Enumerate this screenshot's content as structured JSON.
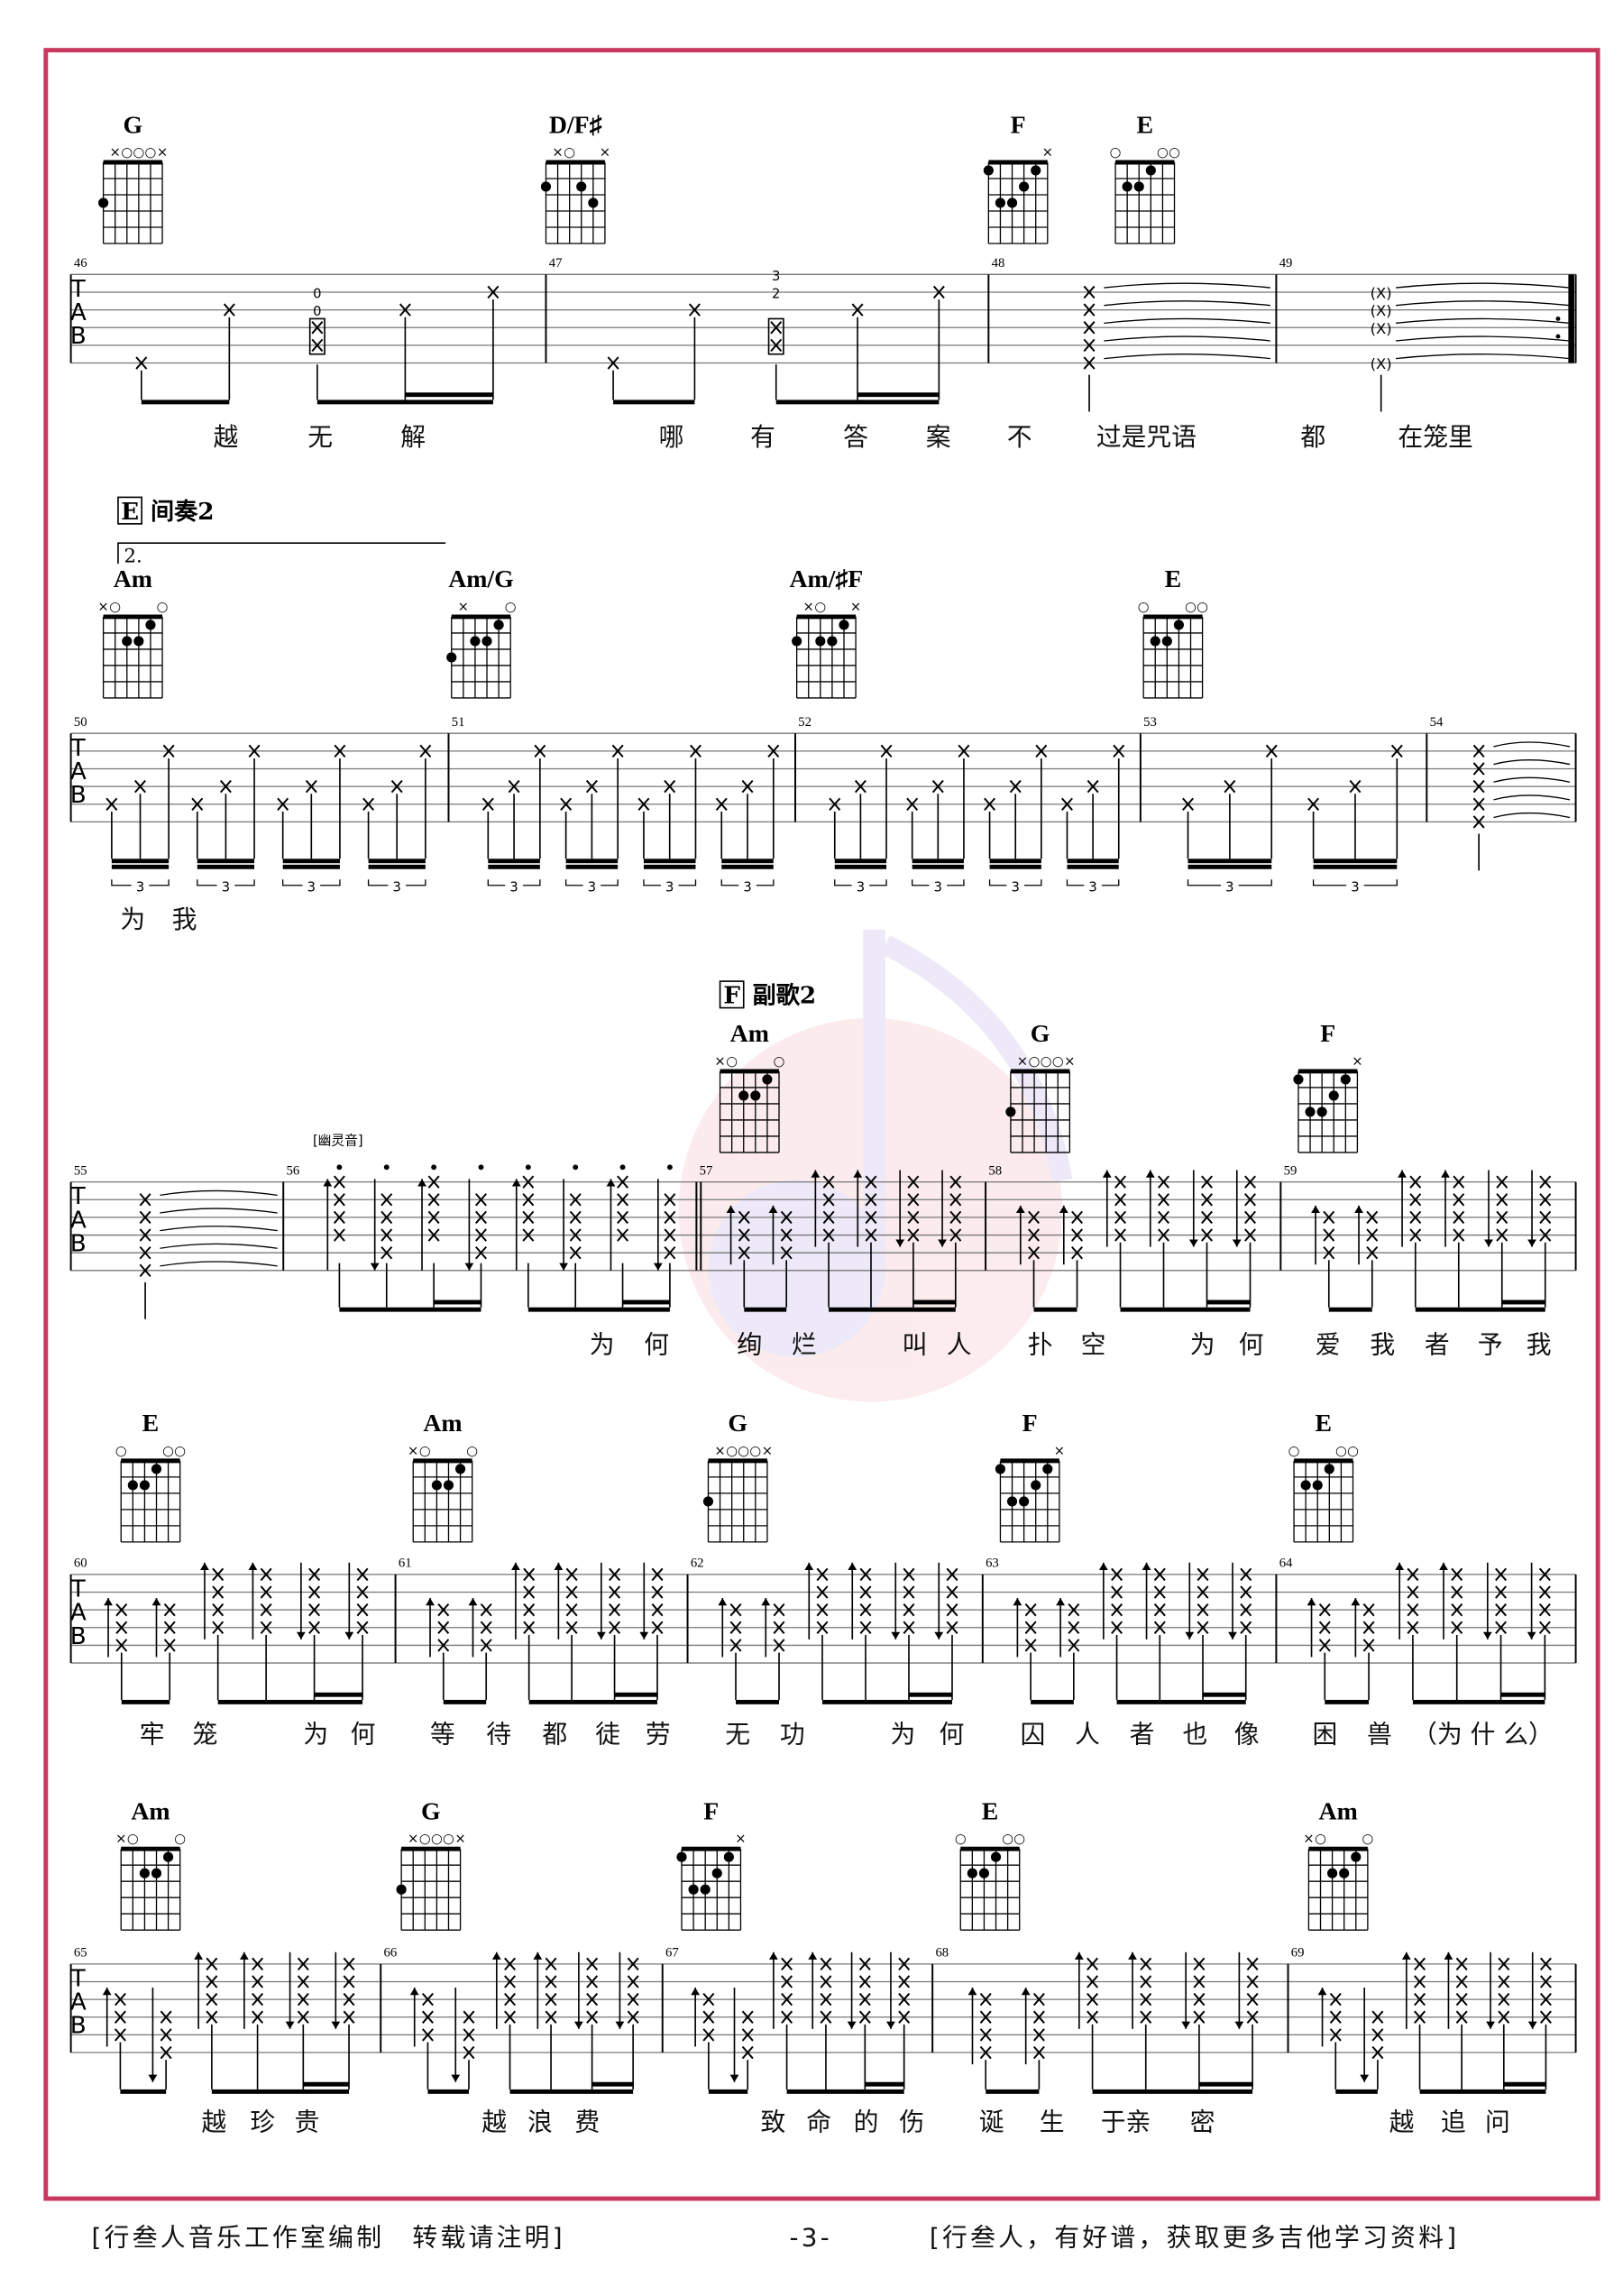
{
  "page": {
    "border_color": "#c8385e",
    "footer_left": "[行叁人音乐工作室编制　转载请注明]",
    "footer_page": "-3-",
    "footer_right": "[行叁人，有好谱，获取更多吉他学习资料]"
  },
  "chord_shapes": {
    "G": {
      "marks": [
        "",
        "×",
        "○",
        "○",
        "○",
        "×"
      ],
      "dots": [
        [
          1,
          3
        ]
      ]
    },
    "D/F♯": {
      "marks": [
        "",
        "×",
        "○",
        "",
        "",
        "×"
      ],
      "dots": [
        [
          1,
          2
        ],
        [
          4,
          2
        ],
        [
          5,
          3
        ]
      ]
    },
    "F": {
      "marks": [
        "",
        "",
        "",
        "",
        "",
        "×"
      ],
      "dots": [
        [
          1,
          1
        ],
        [
          5,
          1
        ],
        [
          4,
          2
        ],
        [
          2,
          3
        ],
        [
          3,
          3
        ]
      ]
    },
    "E": {
      "marks": [
        "○",
        "",
        "",
        "",
        "○",
        "○"
      ],
      "dots": [
        [
          2,
          2
        ],
        [
          3,
          2
        ],
        [
          4,
          1
        ]
      ]
    },
    "Am": {
      "marks": [
        "×",
        "○",
        "",
        "",
        "",
        "○"
      ],
      "dots": [
        [
          3,
          2
        ],
        [
          4,
          2
        ],
        [
          5,
          1
        ]
      ]
    },
    "Am/G": {
      "marks": [
        "",
        "×",
        "",
        "",
        "",
        "○"
      ],
      "dots": [
        [
          1,
          3
        ],
        [
          3,
          2
        ],
        [
          4,
          2
        ],
        [
          5,
          1
        ]
      ]
    },
    "Am/♯F": {
      "marks": [
        "",
        "×",
        "○",
        "",
        "",
        "×"
      ],
      "dots": [
        [
          1,
          2
        ],
        [
          3,
          2
        ],
        [
          4,
          2
        ],
        [
          5,
          1
        ]
      ]
    }
  },
  "systems": [
    {
      "measures": [
        "46",
        "47",
        "48",
        "49"
      ],
      "chords": [
        "G",
        "D/F♯",
        "F",
        "E"
      ],
      "patterns": [
        "pick",
        "pick",
        "hold",
        "hold"
      ],
      "fret_numbers": [
        "0",
        "0",
        "3",
        "2"
      ],
      "paren_marks": [
        "(X)",
        "(X)",
        "(X)",
        "(X)"
      ],
      "lyrics": [
        "越",
        "无",
        "解",
        "哪",
        "有",
        "答",
        "案",
        "不",
        "过是咒语",
        "都",
        "在笼里"
      ]
    },
    {
      "section_letter": "E",
      "section_name": "间奏2",
      "volta": "2.",
      "measures": [
        "50",
        "51",
        "52",
        "53",
        "54"
      ],
      "chords": [
        "Am",
        "Am/G",
        "Am/♯F",
        "E"
      ],
      "patterns": [
        "arp",
        "arp",
        "arp",
        "arp6",
        "hold"
      ],
      "tuplet": "3",
      "lyrics": [
        "为",
        "我"
      ]
    },
    {
      "section_letter": "F",
      "section_name": "副歌2",
      "technique": "[幽灵音]",
      "measures": [
        "55",
        "56",
        "57",
        "58",
        "59"
      ],
      "chords": [
        "Am",
        "G",
        "F"
      ],
      "patterns": [
        "hold",
        "ghost",
        "strum",
        "strum",
        "strum"
      ],
      "lyrics": [
        "为",
        "何",
        "绚",
        "烂",
        "叫",
        "人",
        "扑",
        "空",
        "为",
        "何",
        "爱",
        "我",
        "者",
        "予",
        "我"
      ]
    },
    {
      "measures": [
        "60",
        "61",
        "62",
        "63",
        "64"
      ],
      "chords": [
        "E",
        "Am",
        "G",
        "F",
        "E"
      ],
      "patterns": [
        "strum",
        "strum",
        "strum",
        "strum",
        "strum"
      ],
      "lyrics": [
        "牢",
        "笼",
        "为",
        "何",
        "等",
        "待",
        "都",
        "徒",
        "劳",
        "无",
        "功",
        "为",
        "何",
        "囚",
        "人",
        "者",
        "也",
        "像",
        "困",
        "兽",
        "（为 什 么）"
      ]
    },
    {
      "measures": [
        "65",
        "66",
        "67",
        "68",
        "69"
      ],
      "chords": [
        "Am",
        "G",
        "F",
        "E",
        "Am"
      ],
      "patterns": [
        "strum2",
        "strum2",
        "strum2",
        "strum3",
        "strum2"
      ],
      "lyrics": [
        "越",
        "珍",
        "贵",
        "越",
        "浪",
        "费",
        "致",
        "命",
        "的",
        "伤",
        "诞",
        "生",
        "于亲",
        "密",
        "越",
        "追",
        "问"
      ]
    }
  ]
}
